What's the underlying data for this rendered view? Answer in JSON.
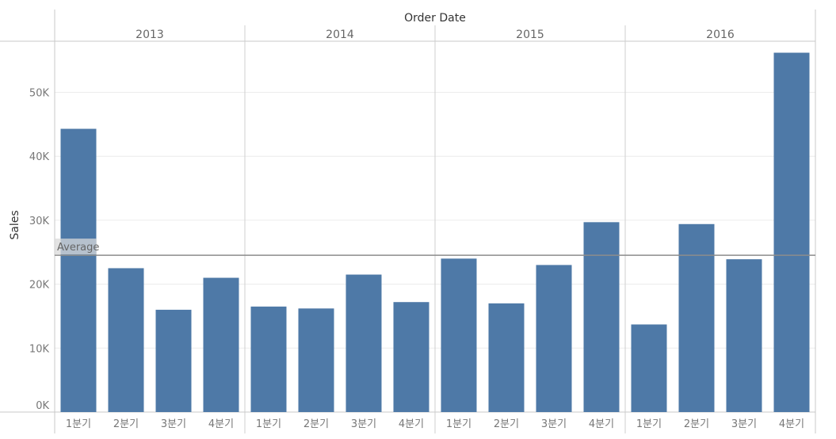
{
  "chart_data": {
    "type": "bar",
    "title": "Order Date",
    "ylabel": "Sales",
    "ylim": [
      0,
      58000
    ],
    "y_ticks": [
      0,
      10000,
      20000,
      30000,
      40000,
      50000
    ],
    "y_tick_labels": [
      "0K",
      "10K",
      "20K",
      "30K",
      "40K",
      "50K"
    ],
    "years": [
      "2013",
      "2014",
      "2015",
      "2016"
    ],
    "quarters": [
      "1분기",
      "2분기",
      "3분기",
      "4분기"
    ],
    "values": [
      [
        44300,
        22500,
        16000,
        21000
      ],
      [
        16500,
        16200,
        21500,
        17200
      ],
      [
        24000,
        17000,
        23000,
        29700
      ],
      [
        13700,
        29400,
        23900,
        56200
      ]
    ],
    "reference_line": {
      "label": "Average",
      "value": 24525
    },
    "bar_color": "#4e79a7",
    "grid": true
  }
}
